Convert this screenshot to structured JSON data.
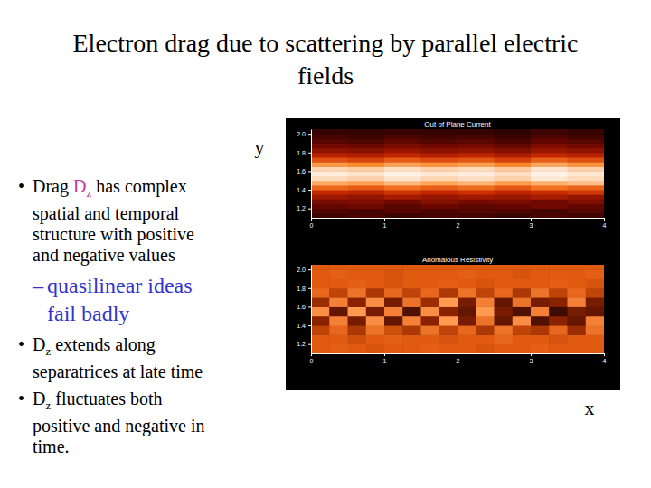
{
  "slide": {
    "title": "Electron drag due to scattering by parallel electric fields",
    "x_label": "x",
    "y_label": "y",
    "bullets": [
      {
        "bullet": "•",
        "level": 1,
        "lines": [
          [
            {
              "text": "Drag "
            },
            {
              "text": "D",
              "color": "#c0399e"
            },
            {
              "text": "z",
              "color": "#c0399e",
              "sub": true
            },
            {
              "text": " has complex"
            }
          ],
          [
            {
              "text": "spatial and temporal"
            }
          ],
          [
            {
              "text": "structure with positive"
            }
          ],
          [
            {
              "text": "and negative values"
            }
          ]
        ]
      },
      {
        "bullet": "–",
        "level": 2,
        "color": "#3333cc",
        "lines": [
          [
            {
              "text": "quasilinear ideas"
            }
          ],
          [
            {
              "text": "fail badly"
            }
          ]
        ]
      },
      {
        "bullet": "•",
        "level": 1,
        "lines": [
          [
            {
              "text": "D"
            },
            {
              "text": "z",
              "sub": true
            },
            {
              "text": " extends along"
            }
          ],
          [
            {
              "text": "separatrices at late time"
            }
          ]
        ]
      },
      {
        "bullet": "•",
        "level": 1,
        "lines": [
          [
            {
              "text": "D"
            },
            {
              "text": "z",
              "sub": true
            },
            {
              "text": " fluctuates both"
            }
          ],
          [
            {
              "text": "positive and negative in"
            }
          ],
          [
            {
              "text": "time."
            }
          ]
        ]
      }
    ]
  },
  "chart_data": [
    {
      "type": "heatmap",
      "title": "Out of Plane Current",
      "xlim": [
        0,
        4
      ],
      "ylim": [
        1.1,
        2.05
      ],
      "xticks": [
        0,
        1,
        2,
        3,
        4
      ],
      "yticks": [
        1.2,
        1.4,
        1.6,
        1.8,
        {
          "value": 2,
          "label": "2.0"
        }
      ],
      "zlim": [
        0,
        1
      ],
      "x_edges": [
        0,
        0.5,
        1,
        1.5,
        2,
        2.5,
        3,
        3.5,
        4
      ],
      "y_edges": [
        1.1,
        1.15,
        1.2,
        1.25,
        1.3,
        1.35,
        1.4,
        1.45,
        1.5,
        1.55,
        1.6,
        1.65,
        1.7,
        1.75,
        1.8,
        1.85,
        1.9,
        1.95,
        2,
        2.05
      ],
      "cells": [
        [
          0.14,
          0.17,
          0.13,
          0.16,
          0.15,
          0.12,
          0.17,
          0.14
        ],
        [
          0.18,
          0.16,
          0.2,
          0.17,
          0.19,
          0.18,
          0.15,
          0.2
        ],
        [
          0.22,
          0.25,
          0.2,
          0.24,
          0.21,
          0.23,
          0.26,
          0.22
        ],
        [
          0.28,
          0.3,
          0.26,
          0.31,
          0.27,
          0.29,
          0.25,
          0.3
        ],
        [
          0.38,
          0.35,
          0.4,
          0.36,
          0.39,
          0.37,
          0.41,
          0.36
        ],
        [
          0.5,
          0.47,
          0.53,
          0.49,
          0.52,
          0.48,
          0.51,
          0.54
        ],
        [
          0.66,
          0.63,
          0.68,
          0.64,
          0.67,
          0.62,
          0.69,
          0.65
        ],
        [
          0.82,
          0.8,
          0.85,
          0.81,
          0.84,
          0.79,
          0.83,
          0.86
        ],
        [
          0.92,
          0.9,
          0.94,
          0.91,
          0.93,
          0.9,
          0.95,
          0.92
        ],
        [
          0.96,
          0.94,
          0.97,
          0.95,
          0.96,
          0.93,
          0.97,
          0.95
        ],
        [
          0.91,
          0.89,
          0.93,
          0.9,
          0.92,
          0.88,
          0.94,
          0.9
        ],
        [
          0.78,
          0.75,
          0.8,
          0.77,
          0.79,
          0.74,
          0.81,
          0.77
        ],
        [
          0.6,
          0.57,
          0.63,
          0.59,
          0.62,
          0.56,
          0.64,
          0.6
        ],
        [
          0.45,
          0.43,
          0.48,
          0.44,
          0.47,
          0.42,
          0.49,
          0.45
        ],
        [
          0.34,
          0.32,
          0.36,
          0.33,
          0.35,
          0.31,
          0.37,
          0.34
        ],
        [
          0.26,
          0.24,
          0.28,
          0.25,
          0.27,
          0.23,
          0.29,
          0.26
        ],
        [
          0.2,
          0.18,
          0.22,
          0.19,
          0.21,
          0.17,
          0.23,
          0.2
        ],
        [
          0.16,
          0.14,
          0.17,
          0.15,
          0.16,
          0.13,
          0.18,
          0.15
        ],
        [
          0.12,
          0.11,
          0.13,
          0.12,
          0.12,
          0.1,
          0.14,
          0.12
        ]
      ]
    },
    {
      "type": "heatmap",
      "title": "Anomalous Resistivity",
      "xlim": [
        0,
        4
      ],
      "ylim": [
        1.1,
        2.05
      ],
      "xticks": [
        0,
        1,
        2,
        3,
        4
      ],
      "yticks": [
        1.2,
        1.4,
        1.6,
        1.8,
        {
          "value": 2,
          "label": "2.0"
        }
      ],
      "zlim": [
        -1,
        1
      ],
      "x_edges": [
        0,
        0.25,
        0.5,
        0.75,
        1,
        1.25,
        1.5,
        1.75,
        2,
        2.25,
        2.5,
        2.75,
        3,
        3.25,
        3.5,
        3.75,
        4
      ],
      "y_edges": [
        1.1,
        1.2,
        1.3,
        1.4,
        1.5,
        1.6,
        1.7,
        1.8,
        1.9,
        2,
        2.05
      ],
      "cells": [
        [
          0,
          0.05,
          0,
          -0.05,
          0,
          0,
          0.05,
          0,
          0,
          -0.05,
          0,
          0,
          0.05,
          0,
          0,
          0
        ],
        [
          0,
          0,
          -0.1,
          0,
          0.05,
          0,
          0,
          -0.05,
          0,
          0,
          0.1,
          0,
          0,
          -0.05,
          0,
          0
        ],
        [
          -0.2,
          0.1,
          -0.3,
          0.2,
          -0.1,
          -0.3,
          0.2,
          -0.2,
          0.1,
          -0.3,
          0.2,
          -0.2,
          -0.3,
          0.1,
          -0.4,
          0.2
        ],
        [
          -0.5,
          0.3,
          -0.6,
          0.4,
          -0.7,
          0.3,
          -0.5,
          0.5,
          -0.6,
          0.2,
          -0.7,
          0.4,
          -0.8,
          -0.5,
          -0.7,
          0.3
        ],
        [
          0.4,
          -0.7,
          0.5,
          -0.6,
          0.3,
          -0.8,
          0.4,
          -0.5,
          -0.7,
          0.5,
          -0.6,
          -0.8,
          0.3,
          -0.9,
          -0.6,
          -0.7
        ],
        [
          -0.4,
          0.3,
          -0.5,
          0.4,
          -0.6,
          0.2,
          -0.4,
          0.5,
          -0.6,
          0.3,
          -0.7,
          0.2,
          -0.6,
          -0.5,
          0.3,
          -0.6
        ],
        [
          0.1,
          -0.2,
          0.2,
          -0.3,
          0.1,
          -0.2,
          0.1,
          -0.3,
          0.2,
          -0.2,
          0.1,
          -0.3,
          0.2,
          -0.2,
          0.1,
          -0.2
        ],
        [
          0,
          0,
          0.05,
          0,
          -0.05,
          0,
          0,
          0.05,
          0,
          -0.05,
          0,
          0,
          0,
          0.05,
          0,
          -0.05
        ],
        [
          0,
          0.05,
          0,
          0,
          -0.05,
          0,
          0,
          0,
          0.05,
          0,
          0,
          -0.05,
          0,
          0,
          0,
          0.05
        ],
        [
          0,
          0,
          0,
          0,
          0,
          0,
          0,
          0,
          0,
          0,
          0,
          0,
          0,
          0,
          0,
          0
        ]
      ]
    }
  ]
}
